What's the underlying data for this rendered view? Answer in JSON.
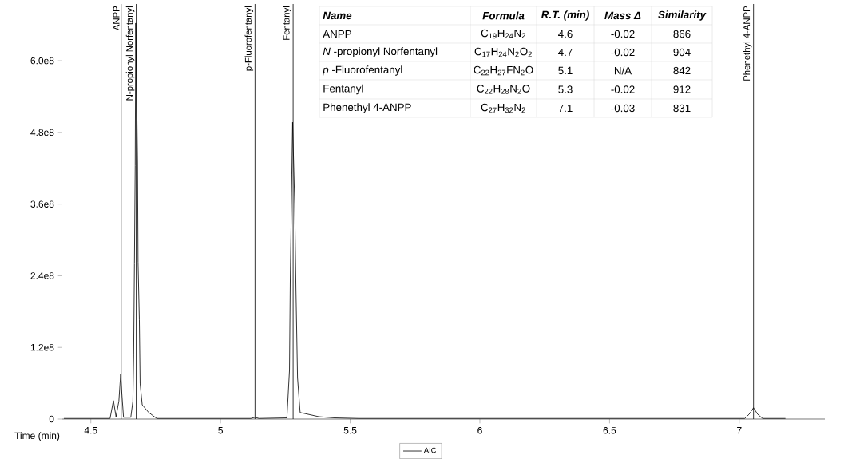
{
  "chart_data": {
    "type": "line",
    "xlabel": "Time (min)",
    "xlim": [
      4.39,
      7.33
    ],
    "ylim": [
      0,
      695000000
    ],
    "xticks": [
      4.5,
      5,
      5.5,
      6,
      6.5,
      7
    ],
    "yticks": [
      0,
      {
        "value": 120000000,
        "label": "1.2e8"
      },
      {
        "value": 240000000,
        "label": "2.4e8"
      },
      {
        "value": 360000000,
        "label": "3.6e8"
      },
      {
        "value": 480000000,
        "label": "4.8e8"
      },
      {
        "value": 600000000,
        "label": "6.0e8"
      }
    ],
    "series": [
      {
        "name": "AIC",
        "color": "#000000",
        "x": [
          4.396,
          4.574,
          4.587,
          4.597,
          4.608,
          4.615,
          4.62,
          4.626,
          4.654,
          4.662,
          4.665,
          4.668,
          4.671,
          4.673,
          4.68,
          4.682,
          4.687,
          4.69,
          4.698,
          4.723,
          4.754,
          5.117,
          5.133,
          5.148,
          5.256,
          5.266,
          5.269,
          5.275,
          5.278,
          5.286,
          5.291,
          5.297,
          5.307,
          5.379,
          5.44,
          5.532,
          7.021,
          7.038,
          7.055,
          7.071,
          7.09,
          7.178
        ],
        "values": [
          1000000,
          1000000,
          31000000,
          4000000,
          30000000,
          75000000,
          40000000,
          3000000,
          3000000,
          30000000,
          107000000,
          260000000,
          424000000,
          663000000,
          429000000,
          263000000,
          166000000,
          60000000,
          24000000,
          11000000,
          1000000,
          1000000,
          3000000,
          1000000,
          2000000,
          82000000,
          234000000,
          409000000,
          497000000,
          361000000,
          215000000,
          69000000,
          11000000,
          4000000,
          2000000,
          1000000,
          1000000,
          8000000,
          19000000,
          8000000,
          1000000,
          1000000
        ]
      }
    ],
    "ref_lines": [
      {
        "axis": "x",
        "value": 4.617,
        "label": "ANPP"
      },
      {
        "axis": "x",
        "value": 4.675,
        "label": "N-propionyl Norfentanyl"
      },
      {
        "axis": "x",
        "value": 5.133,
        "label": "p-Fluorofentanyl"
      },
      {
        "axis": "x",
        "value": 5.28,
        "label": "Fentanyl"
      },
      {
        "axis": "x",
        "value": 7.055,
        "label": "Phenethyl 4-ANPP"
      }
    ],
    "annotations": [
      "Name",
      "Formula",
      "R.T. (min)",
      "Mass Δ",
      "Similarity",
      "ANPP",
      "C$_{19}$H$_{24}$N$_{2}$",
      "4.6",
      "-0.02",
      "866",
      "*N* -propionyl Norfentanyl",
      "C$_{17}$H$_{24}$N$_{2}$O$_{2}$",
      "4.7",
      "-0.02",
      "904",
      "*p* -Fluorofentanyl",
      "C$_{22}$H$_{27}$FN$_{2}$O",
      "5.1",
      "N/A",
      "842",
      "Fentanyl",
      "C$_{22}$H$_{28}$N$_{2}$O",
      "5.3",
      "-0.02",
      "912",
      "Phenethyl 4-ANPP",
      "C$_{27}$H$_{32}$N$_{2}$",
      "7.1",
      "-0.03",
      "831"
    ],
    "legend": "bottom",
    "marker": "none",
    "line_style": "solid",
    "grid": false
  }
}
